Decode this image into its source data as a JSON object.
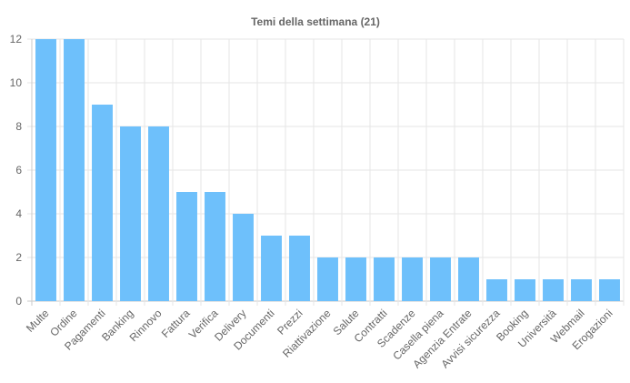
{
  "chart_data": {
    "type": "bar",
    "title": "Temi della settimana (21)",
    "xlabel": "",
    "ylabel": "",
    "ylim": [
      0,
      12
    ],
    "yticks": [
      0,
      2,
      4,
      6,
      8,
      10,
      12
    ],
    "grid": true,
    "legend": "none",
    "bar_color": "#6ec0fb",
    "categories": [
      "Multe",
      "Ordine",
      "Pagamenti",
      "Banking",
      "Rinnovo",
      "Fattura",
      "Verifica",
      "Delivery",
      "Documenti",
      "Prezzi",
      "Riattivazione",
      "Salute",
      "Contratti",
      "Scadenze",
      "Casella piena",
      "Agenzia Entrate",
      "Avvisi sicurezza",
      "Booking",
      "Università",
      "Webmail",
      "Erogazioni"
    ],
    "values": [
      12,
      12,
      9,
      8,
      8,
      5,
      5,
      4,
      3,
      3,
      2,
      2,
      2,
      2,
      2,
      2,
      1,
      1,
      1,
      1,
      1
    ]
  }
}
